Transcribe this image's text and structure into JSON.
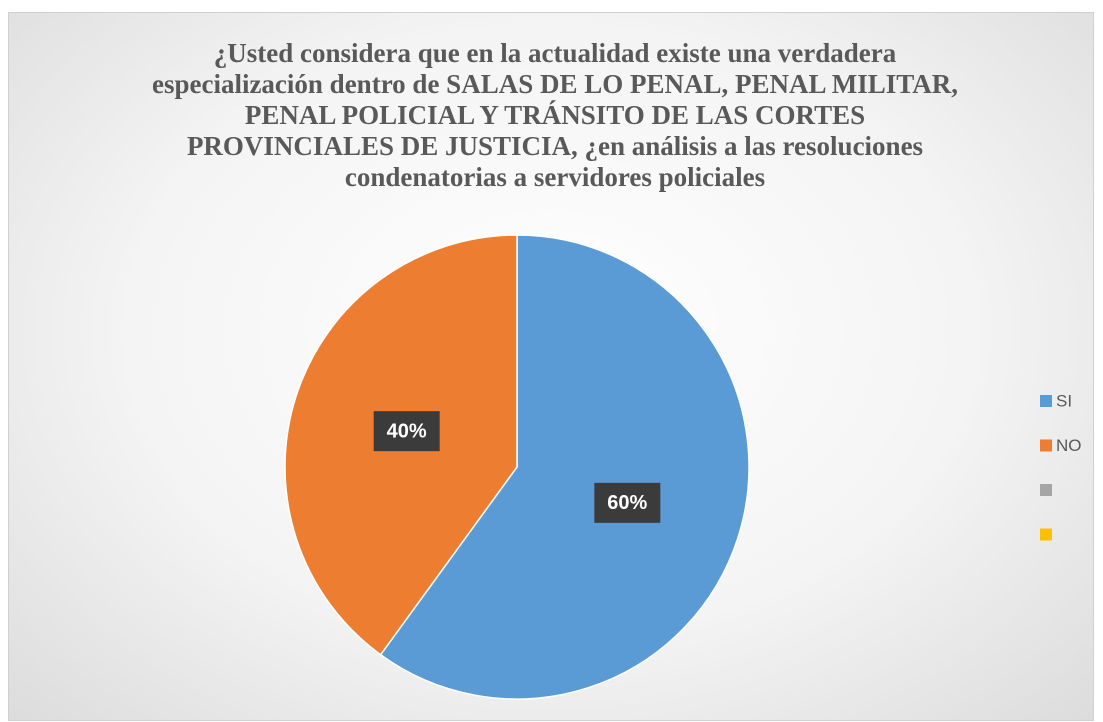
{
  "chart_data": {
    "type": "pie",
    "title": "¿Usted considera que en la actualidad existe una verdadera especialización dentro de SALAS DE LO PENAL, PENAL MILITAR, PENAL POLICIAL Y TRÁNSITO DE LAS CORTES PROVINCIALES DE JUSTICIA, ¿en análisis a las resoluciones condenatorias a servidores policiales",
    "categories": [
      "SI",
      "NO",
      null,
      null
    ],
    "values": [
      60,
      40,
      0,
      0
    ],
    "value_labels": [
      "60%",
      "40%",
      null,
      null
    ],
    "colors": [
      "#5b9bd5",
      "#ed7d31",
      "#a5a5a5",
      "#ffc000"
    ],
    "legend": "right"
  }
}
